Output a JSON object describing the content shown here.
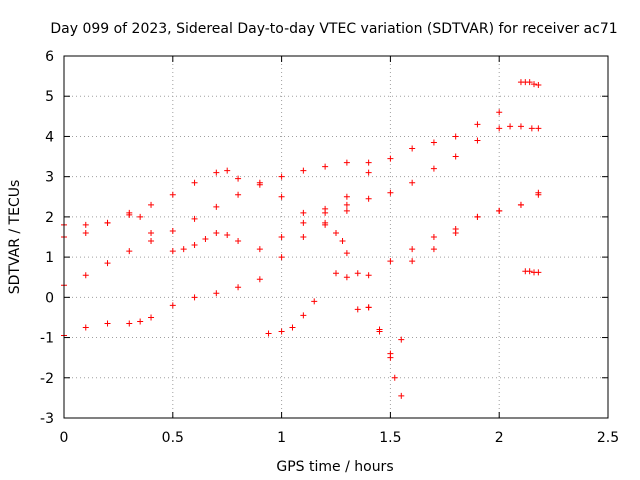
{
  "chart_data": {
    "type": "scatter",
    "title": "Day 099 of 2023, Sidereal Day-to-day VTEC variation (SDTVAR) for receiver ac71",
    "xlabel": "GPS time / hours",
    "ylabel": "SDTVAR / TECUs",
    "xlim": [
      0,
      2.5
    ],
    "ylim": [
      -3,
      6
    ],
    "xticks": [
      "0",
      "0.5",
      "1",
      "1.5",
      "2",
      "2.5"
    ],
    "yticks": [
      "-3",
      "-2",
      "-1",
      "0",
      "1",
      "2",
      "3",
      "4",
      "5",
      "6"
    ],
    "grid": true,
    "marker": "+",
    "color": "#ff0000",
    "series": [
      {
        "x": [
          0.0,
          0.1,
          0.2,
          0.3,
          0.4,
          0.5,
          0.6,
          0.7,
          0.75,
          0.8,
          0.9,
          1.0,
          1.1,
          1.2,
          1.3,
          1.4
        ],
        "y": [
          1.5,
          1.6,
          1.85,
          2.05,
          2.3,
          2.55,
          2.85,
          3.1,
          3.15,
          2.95,
          2.85,
          3.0,
          3.15,
          3.25,
          3.35,
          3.35
        ]
      },
      {
        "x": [
          0.0,
          0.1,
          0.2,
          0.3,
          0.4,
          0.5,
          0.6,
          0.7,
          0.8,
          0.9,
          1.0,
          1.1,
          1.2,
          1.3,
          1.4,
          1.5,
          1.6,
          1.7,
          1.8,
          1.9,
          2.0,
          2.05,
          2.1,
          2.15,
          2.18
        ],
        "y": [
          0.3,
          0.55,
          0.85,
          1.15,
          1.4,
          1.65,
          1.95,
          2.25,
          2.55,
          2.8,
          2.5,
          2.1,
          2.2,
          2.3,
          2.45,
          2.6,
          2.85,
          3.2,
          3.5,
          3.9,
          4.2,
          4.25,
          4.25,
          4.2,
          4.2
        ]
      },
      {
        "x": [
          0.0,
          0.1,
          0.2,
          0.3,
          0.35,
          0.4,
          0.5,
          0.55,
          0.6,
          0.65,
          0.7,
          0.75,
          0.8,
          0.9,
          1.0,
          1.1,
          1.2,
          1.3,
          1.4,
          1.5,
          1.6,
          1.7,
          1.8,
          1.9,
          2.0
        ],
        "y": [
          1.8,
          1.8,
          1.85,
          2.1,
          2.0,
          1.6,
          1.15,
          1.2,
          1.3,
          1.45,
          1.6,
          1.55,
          1.4,
          1.2,
          1.5,
          1.85,
          2.1,
          2.5,
          3.1,
          3.45,
          3.7,
          3.85,
          4.0,
          4.3,
          4.6
        ]
      },
      {
        "x": [
          0.0,
          0.1,
          0.2,
          0.3,
          0.35,
          0.4,
          0.5,
          0.6,
          0.7,
          0.8,
          0.9,
          1.0,
          1.1,
          1.2,
          1.3,
          1.4,
          1.5,
          1.6,
          1.7,
          1.8,
          1.9,
          2.0,
          2.1,
          2.18
        ],
        "y": [
          -0.95,
          -0.75,
          -0.65,
          -0.65,
          -0.6,
          -0.5,
          -0.2,
          0.0,
          0.1,
          0.25,
          0.45,
          1.0,
          1.5,
          1.85,
          2.15,
          0.55,
          0.9,
          1.2,
          1.5,
          1.7,
          2.0,
          2.15,
          2.3,
          2.6
        ]
      },
      {
        "x": [
          0.94,
          1.0,
          1.05,
          1.1,
          1.15,
          1.2,
          1.25,
          1.28,
          1.3,
          1.35,
          1.4,
          1.45,
          1.5,
          1.52,
          1.55
        ],
        "y": [
          -0.9,
          -0.85,
          -0.75,
          -0.45,
          -0.1,
          1.8,
          1.6,
          1.4,
          1.1,
          0.6,
          -0.25,
          -0.8,
          -1.5,
          -2.0,
          -2.45
        ]
      },
      {
        "x": [
          1.25,
          1.3,
          1.35,
          1.4,
          1.45,
          1.5,
          1.55,
          1.6,
          1.7,
          1.8,
          1.9,
          2.0,
          2.1,
          2.18
        ],
        "y": [
          0.6,
          0.5,
          -0.3,
          -0.25,
          -0.85,
          -1.4,
          -1.05,
          0.9,
          1.2,
          1.6,
          2.0,
          2.15,
          2.3,
          2.55
        ]
      },
      {
        "x": [
          2.1,
          2.12,
          2.14,
          2.16,
          2.18
        ],
        "y": [
          5.35,
          5.35,
          5.35,
          5.3,
          5.28
        ]
      },
      {
        "x": [
          2.12,
          2.14,
          2.16,
          2.18
        ],
        "y": [
          0.65,
          0.65,
          0.62,
          0.62
        ]
      }
    ]
  }
}
